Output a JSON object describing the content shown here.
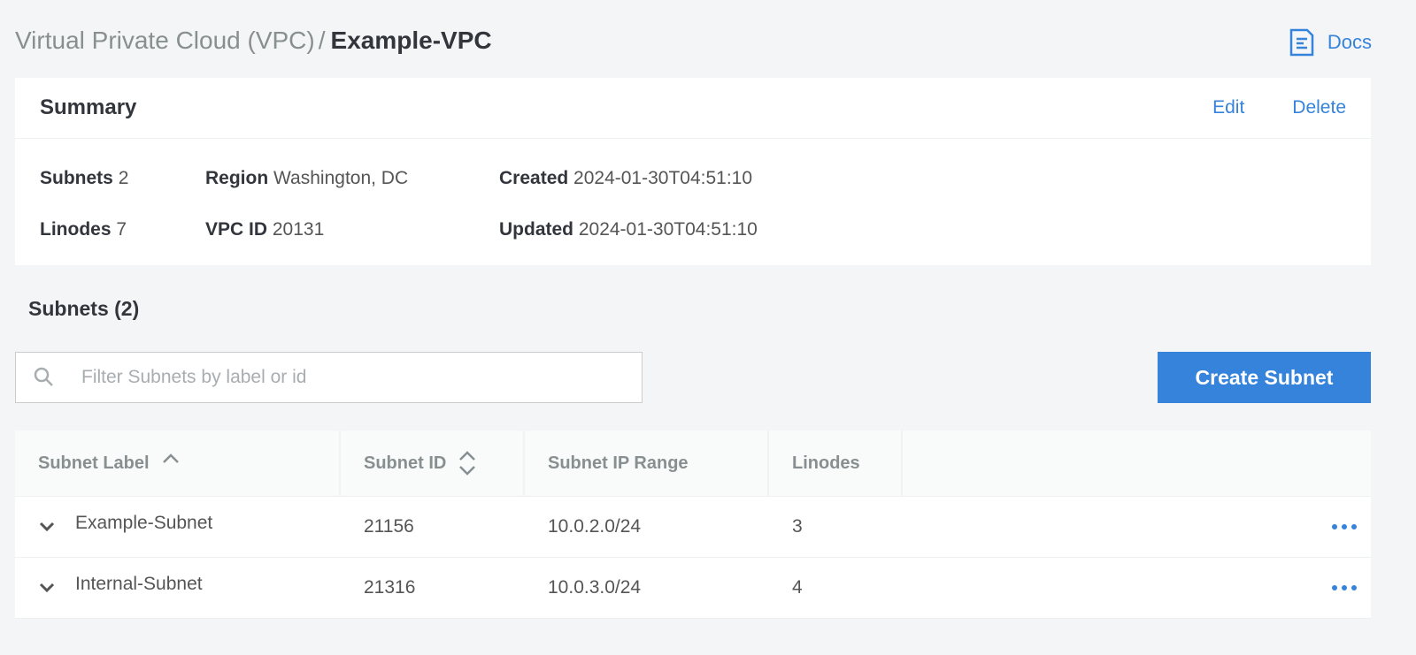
{
  "breadcrumb": {
    "parent": "Virtual Private Cloud (VPC)",
    "separator": "/",
    "current": "Example-VPC"
  },
  "docs": {
    "label": "Docs",
    "icon": "docs-icon"
  },
  "summary": {
    "title": "Summary",
    "edit": "Edit",
    "delete": "Delete",
    "fields": [
      {
        "label": "Subnets",
        "value": "2"
      },
      {
        "label": "Linodes",
        "value": "7"
      },
      {
        "label": "Region",
        "value": "Washington, DC"
      },
      {
        "label": "VPC ID",
        "value": "20131"
      },
      {
        "label": "Created",
        "value": "2024-01-30T04:51:10"
      },
      {
        "label": "Updated",
        "value": "2024-01-30T04:51:10"
      }
    ]
  },
  "subnets": {
    "heading": "Subnets (2)",
    "filter_placeholder": "Filter Subnets by label or id",
    "create_button": "Create Subnet",
    "columns": [
      "Subnet Label",
      "Subnet ID",
      "Subnet IP Range",
      "Linodes"
    ],
    "rows": [
      {
        "label": "Example-Subnet",
        "id": "21156",
        "range": "10.0.2.0/24",
        "linodes": "3"
      },
      {
        "label": "Internal-Subnet",
        "id": "21316",
        "range": "10.0.3.0/24",
        "linodes": "4"
      }
    ]
  },
  "colors": {
    "accent": "#3683dc",
    "background": "#f4f5f6"
  }
}
